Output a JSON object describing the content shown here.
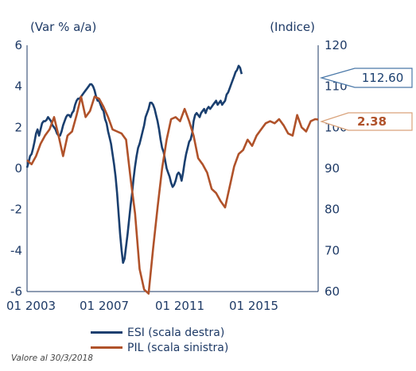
{
  "chart_data": {
    "type": "line",
    "title": "",
    "left_axis_label": "(Var % a/a)",
    "right_axis_label": "(Indice)",
    "ylim_left": [
      -6,
      6
    ],
    "ylim_right": [
      60,
      120
    ],
    "left_ticks": [
      "6",
      "4",
      "2",
      "0",
      "-2",
      "-4",
      "-6"
    ],
    "right_ticks": [
      "120",
      "110",
      "100",
      "90",
      "80",
      "70",
      "60"
    ],
    "x_ticks": [
      "01 2003",
      "01 2007",
      "01 2011",
      "01 2015"
    ],
    "x_range": [
      "2002-01",
      "2018-03"
    ],
    "grid": false,
    "legend_position": "bottom-left",
    "colors": {
      "esi": "#1a3f6f",
      "pil": "#b0522a",
      "axis": "#1e3a66"
    },
    "series": [
      {
        "name": "ESI (scala destra)",
        "axis": "right",
        "callout": "112.60",
        "points": [
          [
            "2002-01",
            90.2
          ],
          [
            "2002-02",
            91.5
          ],
          [
            "2002-03",
            93.0
          ],
          [
            "2002-04",
            93.5
          ],
          [
            "2002-05",
            94.8
          ],
          [
            "2002-06",
            96.5
          ],
          [
            "2002-07",
            98.5
          ],
          [
            "2002-08",
            99.5
          ],
          [
            "2002-09",
            98.0
          ],
          [
            "2002-10",
            99.5
          ],
          [
            "2002-11",
            101.0
          ],
          [
            "2002-12",
            101.5
          ],
          [
            "2003-01",
            101.5
          ],
          [
            "2003-02",
            101.8
          ],
          [
            "2003-03",
            102.5
          ],
          [
            "2003-04",
            102.0
          ],
          [
            "2003-05",
            101.5
          ],
          [
            "2003-06",
            100.5
          ],
          [
            "2003-07",
            100.0
          ],
          [
            "2003-08",
            99.5
          ],
          [
            "2003-09",
            98.5
          ],
          [
            "2003-10",
            98.0
          ],
          [
            "2003-11",
            98.0
          ],
          [
            "2003-12",
            99.0
          ],
          [
            "2004-01",
            100.5
          ],
          [
            "2004-02",
            101.5
          ],
          [
            "2004-03",
            102.5
          ],
          [
            "2004-04",
            103.0
          ],
          [
            "2004-05",
            103.0
          ],
          [
            "2004-06",
            102.5
          ],
          [
            "2004-07",
            103.5
          ],
          [
            "2004-08",
            104.0
          ],
          [
            "2004-09",
            105.5
          ],
          [
            "2004-10",
            106.5
          ],
          [
            "2004-11",
            107.0
          ],
          [
            "2004-12",
            107.0
          ],
          [
            "2005-01",
            107.5
          ],
          [
            "2005-02",
            108.0
          ],
          [
            "2005-03",
            108.5
          ],
          [
            "2005-04",
            109.0
          ],
          [
            "2005-05",
            109.5
          ],
          [
            "2005-06",
            110.0
          ],
          [
            "2005-07",
            110.5
          ],
          [
            "2005-08",
            110.5
          ],
          [
            "2005-09",
            110.0
          ],
          [
            "2005-10",
            109.0
          ],
          [
            "2005-11",
            107.5
          ],
          [
            "2005-12",
            106.5
          ],
          [
            "2006-01",
            106.5
          ],
          [
            "2006-02",
            105.5
          ],
          [
            "2006-03",
            104.5
          ],
          [
            "2006-04",
            104.0
          ],
          [
            "2006-05",
            102.0
          ],
          [
            "2006-06",
            101.0
          ],
          [
            "2006-07",
            99.0
          ],
          [
            "2006-08",
            97.5
          ],
          [
            "2006-09",
            96.0
          ],
          [
            "2006-10",
            93.5
          ],
          [
            "2006-11",
            91.0
          ],
          [
            "2006-12",
            88.0
          ],
          [
            "2007-01",
            84.0
          ],
          [
            "2007-02",
            79.0
          ],
          [
            "2007-03",
            74.0
          ],
          [
            "2007-04",
            70.0
          ],
          [
            "2007-05",
            67.0
          ],
          [
            "2007-06",
            68.0
          ],
          [
            "2007-07",
            71.0
          ],
          [
            "2007-08",
            74.0
          ],
          [
            "2007-09",
            77.5
          ],
          [
            "2007-10",
            81.0
          ],
          [
            "2007-11",
            84.0
          ],
          [
            "2007-12",
            87.5
          ],
          [
            "2008-01",
            90.5
          ],
          [
            "2008-02",
            93.0
          ],
          [
            "2008-03",
            95.0
          ],
          [
            "2008-04",
            96.0
          ],
          [
            "2008-05",
            97.5
          ],
          [
            "2008-06",
            99.0
          ],
          [
            "2008-07",
            100.5
          ],
          [
            "2008-08",
            102.5
          ],
          [
            "2008-09",
            103.5
          ],
          [
            "2008-10",
            104.5
          ],
          [
            "2008-11",
            106.0
          ],
          [
            "2008-12",
            106.0
          ],
          [
            "2009-01",
            105.5
          ],
          [
            "2009-02",
            104.5
          ],
          [
            "2009-03",
            103.0
          ],
          [
            "2009-04",
            101.5
          ],
          [
            "2009-05",
            99.5
          ],
          [
            "2009-06",
            97.0
          ],
          [
            "2009-07",
            95.0
          ],
          [
            "2009-08",
            94.0
          ],
          [
            "2009-09",
            92.0
          ],
          [
            "2009-10",
            90.0
          ],
          [
            "2009-11",
            89.0
          ],
          [
            "2009-12",
            88.0
          ],
          [
            "2010-01",
            86.5
          ],
          [
            "2010-02",
            85.5
          ],
          [
            "2010-03",
            86.0
          ],
          [
            "2010-04",
            87.0
          ],
          [
            "2010-05",
            88.5
          ],
          [
            "2010-06",
            89.0
          ],
          [
            "2010-07",
            88.5
          ],
          [
            "2010-08",
            87.0
          ],
          [
            "2010-09",
            89.0
          ],
          [
            "2010-10",
            91.5
          ],
          [
            "2010-11",
            93.5
          ],
          [
            "2010-12",
            95.0
          ],
          [
            "2011-01",
            96.5
          ],
          [
            "2011-02",
            97.0
          ],
          [
            "2011-03",
            98.5
          ],
          [
            "2011-04",
            101.5
          ],
          [
            "2011-05",
            103.0
          ],
          [
            "2011-06",
            103.5
          ],
          [
            "2011-07",
            103.0
          ],
          [
            "2011-08",
            102.5
          ],
          [
            "2011-09",
            103.5
          ],
          [
            "2011-10",
            104.0
          ],
          [
            "2011-11",
            104.5
          ],
          [
            "2011-12",
            103.5
          ],
          [
            "2012-01",
            104.5
          ],
          [
            "2012-02",
            105.0
          ],
          [
            "2012-03",
            104.5
          ],
          [
            "2012-04",
            105.0
          ],
          [
            "2012-05",
            105.5
          ],
          [
            "2012-06",
            106.0
          ],
          [
            "2012-07",
            106.5
          ],
          [
            "2012-08",
            105.5
          ],
          [
            "2012-09",
            106.0
          ],
          [
            "2012-10",
            106.5
          ],
          [
            "2012-11",
            105.5
          ],
          [
            "2012-12",
            106.0
          ],
          [
            "2013-01",
            106.5
          ],
          [
            "2013-02",
            108.0
          ],
          [
            "2013-03",
            108.5
          ],
          [
            "2013-04",
            109.5
          ],
          [
            "2013-05",
            110.5
          ],
          [
            "2013-06",
            111.5
          ],
          [
            "2013-07",
            112.5
          ],
          [
            "2013-08",
            113.5
          ],
          [
            "2013-09",
            114.0
          ],
          [
            "2013-10",
            115.0
          ],
          [
            "2013-11",
            114.5
          ],
          [
            "2013-12",
            113.0
          ]
        ]
      },
      {
        "name": "PIL (scala sinistra)",
        "axis": "left",
        "callout": "2.38",
        "points": [
          [
            "2002-01",
            0.4
          ],
          [
            "2002-04",
            0.2
          ],
          [
            "2002-07",
            0.6
          ],
          [
            "2002-10",
            1.2
          ],
          [
            "2003-01",
            1.6
          ],
          [
            "2003-04",
            1.9
          ],
          [
            "2003-07",
            2.5
          ],
          [
            "2003-10",
            1.6
          ],
          [
            "2004-01",
            0.6
          ],
          [
            "2004-04",
            1.6
          ],
          [
            "2004-07",
            1.8
          ],
          [
            "2004-10",
            2.6
          ],
          [
            "2005-01",
            3.5
          ],
          [
            "2005-04",
            2.5
          ],
          [
            "2005-07",
            2.8
          ],
          [
            "2005-10",
            3.5
          ],
          [
            "2006-01",
            3.4
          ],
          [
            "2006-04",
            3.0
          ],
          [
            "2006-07",
            2.5
          ],
          [
            "2006-10",
            1.9
          ],
          [
            "2007-01",
            1.8
          ],
          [
            "2007-04",
            1.7
          ],
          [
            "2007-07",
            1.4
          ],
          [
            "2007-10",
            -0.5
          ],
          [
            "2008-01",
            -2.2
          ],
          [
            "2008-04",
            -4.9
          ],
          [
            "2008-07",
            -5.9
          ],
          [
            "2008-10",
            -6.1
          ],
          [
            "2009-01",
            -3.9
          ],
          [
            "2009-04",
            -1.9
          ],
          [
            "2009-07",
            0.0
          ],
          [
            "2009-10",
            1.4
          ],
          [
            "2010-01",
            2.4
          ],
          [
            "2010-04",
            2.5
          ],
          [
            "2010-07",
            2.3
          ],
          [
            "2010-10",
            2.9
          ],
          [
            "2011-01",
            2.3
          ],
          [
            "2011-04",
            1.6
          ],
          [
            "2011-07",
            0.5
          ],
          [
            "2011-10",
            0.2
          ],
          [
            "2012-01",
            -0.2
          ],
          [
            "2012-04",
            -1.0
          ],
          [
            "2012-07",
            -1.2
          ],
          [
            "2012-10",
            -1.6
          ],
          [
            "2013-01",
            -1.9
          ],
          [
            "2013-04",
            -0.9
          ],
          [
            "2013-07",
            0.1
          ],
          [
            "2013-10",
            0.7
          ],
          [
            "2014-01",
            0.9
          ],
          [
            "2014-04",
            1.4
          ],
          [
            "2014-07",
            1.1
          ],
          [
            "2014-10",
            1.6
          ],
          [
            "2015-01",
            1.9
          ],
          [
            "2015-04",
            2.2
          ],
          [
            "2015-07",
            2.3
          ],
          [
            "2015-10",
            2.2
          ],
          [
            "2016-01",
            2.4
          ],
          [
            "2016-04",
            2.1
          ],
          [
            "2016-07",
            1.7
          ],
          [
            "2016-10",
            1.6
          ],
          [
            "2017-01",
            2.6
          ],
          [
            "2017-04",
            2.0
          ],
          [
            "2017-07",
            1.8
          ],
          [
            "2017-10",
            2.3
          ],
          [
            "2018-01",
            2.4
          ],
          [
            "2018-03",
            2.38
          ]
        ]
      }
    ]
  },
  "legend": {
    "items": [
      {
        "label": "ESI (scala destra)",
        "color": "#1a3f6f"
      },
      {
        "label": "PIL (scala sinistra)",
        "color": "#b0522a"
      }
    ]
  },
  "note": "Valore al 30/3/2018"
}
